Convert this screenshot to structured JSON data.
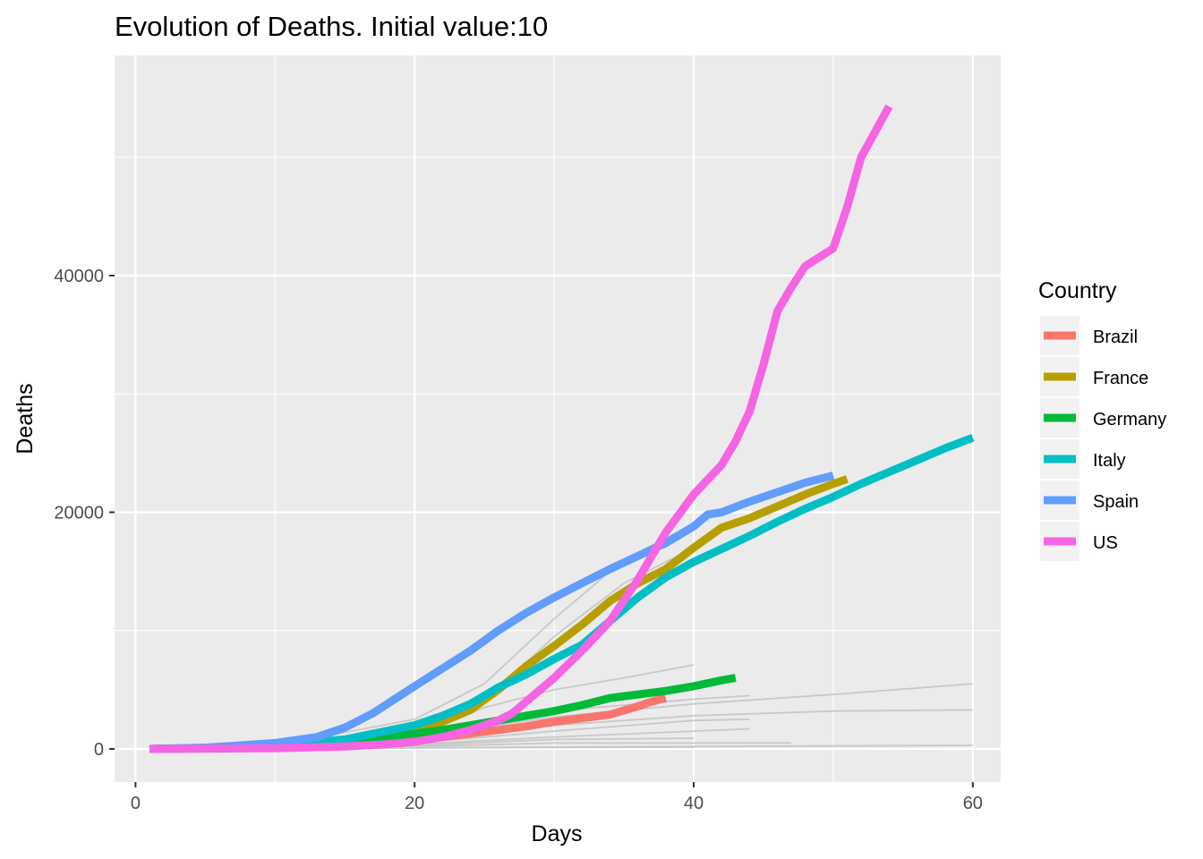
{
  "chart_data": {
    "type": "line",
    "title": "Evolution of Deaths. Initial value:10",
    "xlabel": "Days",
    "ylabel": "Deaths",
    "xlim": [
      -1.5,
      62
    ],
    "ylim": [
      -2800,
      58600
    ],
    "x_ticks": [
      0,
      20,
      40,
      60
    ],
    "y_ticks": [
      0,
      20000,
      40000
    ],
    "x_tick_labels": [
      "0",
      "20",
      "40",
      "60"
    ],
    "y_tick_labels": [
      "0",
      "20000",
      "40000"
    ],
    "x_minor": [
      10,
      30,
      50
    ],
    "y_minor": [
      10000,
      30000,
      50000
    ],
    "grid": true,
    "legend": {
      "title": "Country",
      "position": "right"
    },
    "background_series": [
      {
        "x": [
          1,
          10,
          20,
          25,
          30,
          35,
          40
        ],
        "values": [
          0,
          300,
          2500,
          5500,
          11000,
          16000,
          19000
        ]
      },
      {
        "x": [
          1,
          10,
          20,
          25,
          30,
          35,
          40
        ],
        "values": [
          0,
          200,
          1500,
          4000,
          9500,
          14000,
          17000
        ]
      },
      {
        "x": [
          1,
          10,
          20,
          25,
          30,
          35,
          40
        ],
        "values": [
          0,
          100,
          1000,
          3500,
          5000,
          6000,
          7100
        ]
      },
      {
        "x": [
          1,
          15,
          20,
          30,
          40,
          44
        ],
        "values": [
          0,
          300,
          1000,
          3200,
          4200,
          4500
        ]
      },
      {
        "x": [
          1,
          15,
          20,
          30,
          40,
          50,
          60
        ],
        "values": [
          0,
          300,
          1000,
          2700,
          3800,
          4600,
          5500
        ]
      },
      {
        "x": [
          1,
          20,
          30,
          40,
          50,
          60
        ],
        "values": [
          0,
          500,
          2000,
          2800,
          3200,
          3300
        ]
      },
      {
        "x": [
          1,
          20,
          30,
          40,
          44
        ],
        "values": [
          0,
          500,
          1500,
          2400,
          2500
        ]
      },
      {
        "x": [
          1,
          20,
          30,
          40,
          44
        ],
        "values": [
          0,
          400,
          1000,
          1500,
          1700
        ]
      },
      {
        "x": [
          1,
          20,
          30,
          40
        ],
        "values": [
          0,
          300,
          800,
          900
        ]
      },
      {
        "x": [
          1,
          20,
          30,
          40,
          47
        ],
        "values": [
          0,
          200,
          500,
          500,
          500
        ]
      },
      {
        "x": [
          1,
          20,
          40,
          60
        ],
        "values": [
          0,
          100,
          200,
          300
        ]
      },
      {
        "x": [
          1,
          25,
          40
        ],
        "values": [
          0,
          100,
          150
        ]
      }
    ],
    "series": [
      {
        "name": "Brazil",
        "color": "#F8766D",
        "x": [
          1,
          5,
          10,
          15,
          20,
          22,
          24,
          26,
          28,
          30,
          32,
          34,
          36,
          37,
          38
        ],
        "values": [
          0,
          50,
          150,
          400,
          800,
          1000,
          1300,
          1600,
          1900,
          2300,
          2600,
          2900,
          3600,
          4000,
          4300
        ]
      },
      {
        "name": "France",
        "color": "#B79F00",
        "x": [
          1,
          5,
          10,
          15,
          18,
          20,
          22,
          24,
          26,
          28,
          30,
          32,
          34,
          36,
          38,
          40,
          42,
          44,
          46,
          48,
          50,
          51
        ],
        "values": [
          0,
          50,
          150,
          400,
          900,
          1500,
          2300,
          3300,
          5000,
          7000,
          8700,
          10500,
          12500,
          14000,
          15200,
          17000,
          18700,
          19500,
          20500,
          21500,
          22400,
          22800
        ]
      },
      {
        "name": "Germany",
        "color": "#00BA38",
        "x": [
          1,
          5,
          10,
          15,
          18,
          20,
          22,
          24,
          26,
          28,
          30,
          32,
          34,
          36,
          38,
          40,
          42,
          43
        ],
        "values": [
          0,
          50,
          200,
          600,
          1000,
          1300,
          1600,
          2000,
          2400,
          2800,
          3200,
          3700,
          4300,
          4600,
          4900,
          5300,
          5800,
          6000
        ]
      },
      {
        "name": "Italy",
        "color": "#00BFC4",
        "x": [
          1,
          5,
          10,
          15,
          20,
          22,
          24,
          26,
          28,
          30,
          32,
          34,
          36,
          38,
          40,
          42,
          44,
          46,
          48,
          50,
          52,
          54,
          56,
          58,
          60
        ],
        "values": [
          0,
          100,
          300,
          800,
          2000,
          2800,
          3800,
          5200,
          6300,
          7600,
          8800,
          10800,
          12800,
          14500,
          15800,
          16900,
          18000,
          19200,
          20300,
          21300,
          22400,
          23400,
          24400,
          25400,
          26300
        ]
      },
      {
        "name": "Spain",
        "color": "#619CFF",
        "x": [
          1,
          5,
          10,
          13,
          15,
          17,
          20,
          22,
          24,
          26,
          28,
          30,
          32,
          34,
          36,
          38,
          40,
          41,
          42,
          44,
          46,
          48,
          50
        ],
        "values": [
          0,
          100,
          500,
          1000,
          1800,
          3000,
          5300,
          6800,
          8300,
          10000,
          11500,
          12800,
          14000,
          15200,
          16300,
          17400,
          18800,
          19800,
          20000,
          20900,
          21700,
          22500,
          23100
        ]
      },
      {
        "name": "US",
        "color": "#F564E3",
        "x": [
          1,
          5,
          10,
          15,
          18,
          20,
          22,
          24,
          26,
          27,
          28,
          30,
          32,
          34,
          36,
          38,
          40,
          42,
          43,
          44,
          45,
          46,
          47,
          48,
          50,
          51,
          52,
          54
        ],
        "values": [
          0,
          20,
          60,
          200,
          400,
          600,
          1000,
          1600,
          2400,
          3000,
          4000,
          6000,
          8300,
          10800,
          14300,
          18300,
          21500,
          24000,
          26000,
          28500,
          32500,
          37000,
          39000,
          40800,
          42300,
          45800,
          50000,
          54300
        ]
      }
    ]
  }
}
